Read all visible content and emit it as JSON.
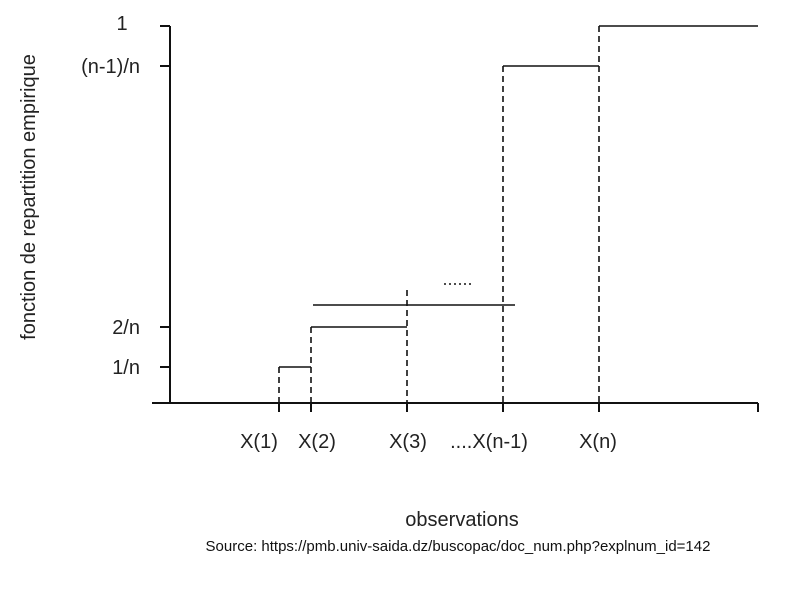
{
  "chart_data": {
    "type": "line",
    "xlabel": "observations",
    "ylabel": "fonction de repartition empirique",
    "y_tick_labels": [
      "1/n",
      "2/n",
      "(n-1)/n",
      "1"
    ],
    "x_tick_labels": [
      "X(1)",
      "X(2)",
      "X(3)",
      "....X(n-1)",
      "X(n)"
    ],
    "ellipsis": "....",
    "source": "Source: https://pmb.univ-saida.dz/buscopac/doc_num.php?explnum_id=142",
    "grid": false,
    "legend": "none"
  }
}
